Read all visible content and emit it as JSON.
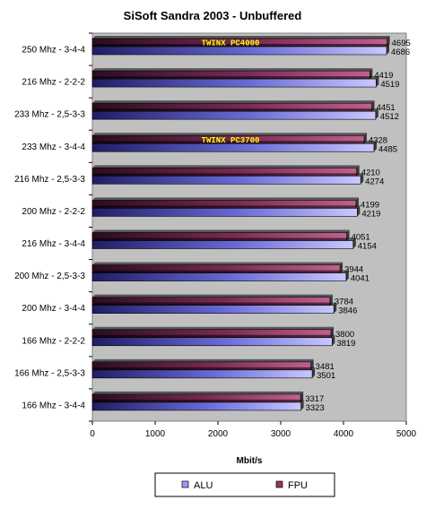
{
  "chart_data": {
    "type": "bar",
    "orientation": "horizontal",
    "title": "SiSoft Sandra 2003 - Unbuffered",
    "xlabel": "Mbit/s",
    "ylabel": "",
    "xlim": [
      0,
      5000
    ],
    "xticks": [
      "0",
      "1000",
      "2000",
      "3000",
      "4000",
      "5000"
    ],
    "grid": false,
    "legend_position": "bottom",
    "categories": [
      "250 Mhz - 3-4-4",
      "216 Mhz - 2-2-2",
      "233 Mhz - 2,5-3-3",
      "233 Mhz - 3-4-4",
      "216 Mhz - 2,5-3-3",
      "200 Mhz - 2-2-2",
      "216 Mhz - 3-4-4",
      "200 Mhz - 2,5-3-3",
      "200 Mhz - 3-4-4",
      "166 Mhz - 2-2-2",
      "166 Mhz - 2,5-3-3",
      "166 Mhz - 3-4-4"
    ],
    "series": [
      {
        "name": "FPU",
        "color": "#993366",
        "values": [
          4695,
          4419,
          4451,
          4328,
          4210,
          4199,
          4051,
          3944,
          3784,
          3800,
          3481,
          3317
        ]
      },
      {
        "name": "ALU",
        "color": "#9999ff",
        "values": [
          4686,
          4519,
          4512,
          4485,
          4274,
          4219,
          4154,
          4041,
          3846,
          3819,
          3501,
          3323
        ]
      }
    ],
    "legend": [
      "ALU",
      "FPU"
    ],
    "annotations": [
      {
        "text": "TWINX PC4000",
        "category_index": 0
      },
      {
        "text": "TWINX PC3700",
        "category_index": 3
      }
    ],
    "colors": {
      "plot_background": "#c0c0c0",
      "alu": "#9999ff",
      "fpu": "#993366"
    }
  }
}
